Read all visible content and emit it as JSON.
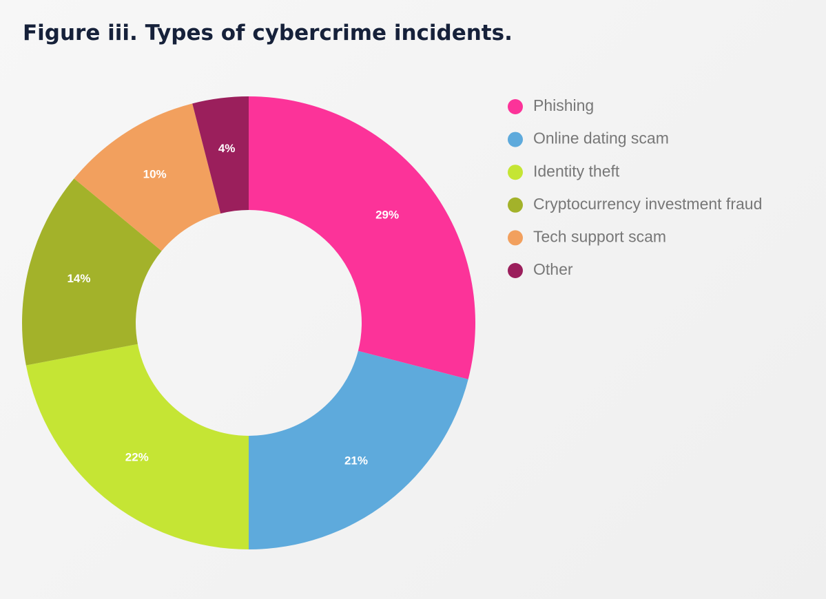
{
  "chart_data": {
    "type": "donut",
    "title": "Figure iii. Types of cybercrime incidents.",
    "categories": [
      "Phishing",
      "Online dating scam",
      "Identity theft",
      "Cryptocurrency investment fraud",
      "Tech support scam",
      "Other"
    ],
    "values": [
      29,
      21,
      22,
      14,
      10,
      4
    ],
    "value_labels": [
      "29%",
      "21%",
      "22%",
      "14%",
      "10%",
      "4%"
    ],
    "colors": [
      "#fc3399",
      "#5eaadc",
      "#c5e534",
      "#a3b22a",
      "#f2a05e",
      "#9b1f5c"
    ],
    "legend": "right"
  }
}
